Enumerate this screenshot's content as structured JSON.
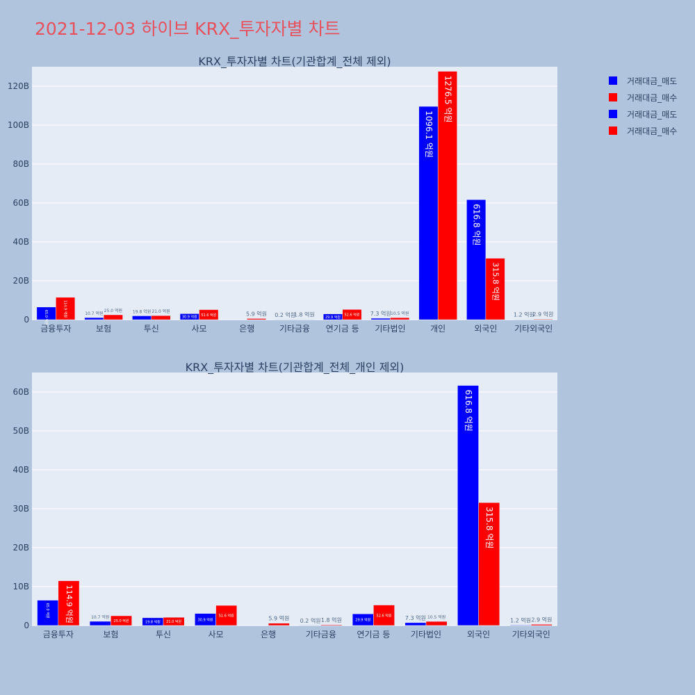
{
  "page": {
    "title": "2021-12-03 하이브 KRX_투자자별 차트"
  },
  "legend": [
    {
      "label": "거래대금_매도",
      "color": "#0000ff"
    },
    {
      "label": "거래대금_매수",
      "color": "#ff0000"
    },
    {
      "label": "거래대금_매도",
      "color": "#0000ff"
    },
    {
      "label": "거래대금_매수",
      "color": "#ff0000"
    }
  ],
  "chart_data": [
    {
      "type": "bar",
      "title": "KRX_투자자별 차트(기관합계_전체 제외)",
      "categories": [
        "금융투자",
        "보험",
        "투신",
        "사모",
        "은행",
        "기타금융",
        "연기금 등",
        "기타법인",
        "개인",
        "외국인",
        "기타외국인"
      ],
      "series": [
        {
          "name": "거래대금_매도",
          "color": "#0000ff",
          "values": [
            6.5,
            1.07,
            1.98,
            3.09,
            0,
            0.02,
            2.99,
            0.73,
            109.61,
            61.68,
            0.12
          ],
          "labels": [
            "65.0 억원",
            "10.7 억원",
            "19.8 억원",
            "30.9 억원",
            "",
            "0.2 억원",
            "29.9 억원",
            "7.3 억원",
            "1096.1 억원",
            "616.8 억원",
            "1.2 억원"
          ]
        },
        {
          "name": "거래대금_매수",
          "color": "#ff0000",
          "values": [
            11.49,
            2.5,
            2.1,
            5.16,
            0.59,
            0.18,
            5.26,
            1.05,
            127.65,
            31.58,
            0.29
          ],
          "labels": [
            "114.9 억원",
            "25.0 억원",
            "21.0 억원",
            "51.6 억원",
            "5.9 억원",
            "1.8 억원",
            "52.6 억원",
            "10.5 억원",
            "1276.5 억원",
            "315.8 억원",
            "2.9 억원"
          ]
        }
      ],
      "ylim": [
        0,
        130
      ],
      "yticks": [
        0,
        20,
        40,
        60,
        80,
        100,
        120
      ],
      "ytick_labels": [
        "0",
        "20B",
        "40B",
        "60B",
        "80B",
        "100B",
        "120B"
      ],
      "grid": true
    },
    {
      "type": "bar",
      "title": "KRX_투자자별 차트(기관합계_전체_개인 제외)",
      "categories": [
        "금융투자",
        "보험",
        "투신",
        "사모",
        "은행",
        "기타금융",
        "연기금 등",
        "기타법인",
        "외국인",
        "기타외국인"
      ],
      "series": [
        {
          "name": "거래대금_매도",
          "color": "#0000ff",
          "values": [
            6.5,
            1.07,
            1.98,
            3.09,
            0,
            0.02,
            2.99,
            0.73,
            61.68,
            0.12
          ],
          "labels": [
            "65.0 억원",
            "10.7 억원",
            "19.8 억원",
            "30.9 억원",
            "",
            "0.2 억원",
            "29.9 억원",
            "7.3 억원",
            "616.8 억원",
            "1.2 억원"
          ]
        },
        {
          "name": "거래대금_매수",
          "color": "#ff0000",
          "values": [
            11.49,
            2.5,
            2.1,
            5.16,
            0.59,
            0.18,
            5.26,
            1.05,
            31.58,
            0.29
          ],
          "labels": [
            "114.9 억원",
            "25.0 억원",
            "21.0 억원",
            "51.6 억원",
            "5.9 억원",
            "1.8 억원",
            "52.6 억원",
            "10.5 억원",
            "315.8 억원",
            "2.9 억원"
          ]
        }
      ],
      "ylim": [
        0,
        65
      ],
      "yticks": [
        0,
        10,
        20,
        30,
        40,
        50,
        60
      ],
      "ytick_labels": [
        "0",
        "10B",
        "20B",
        "30B",
        "40B",
        "50B",
        "60B"
      ],
      "grid": true
    }
  ]
}
